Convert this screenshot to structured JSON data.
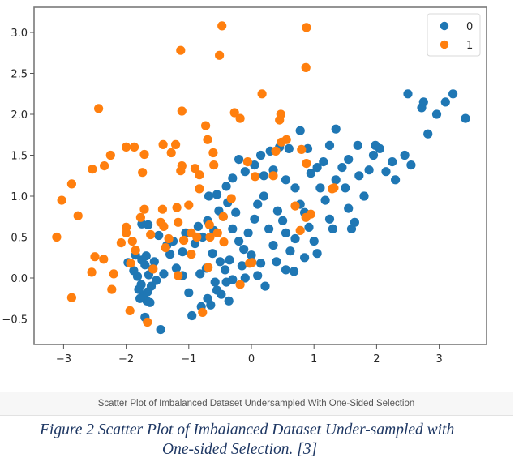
{
  "colors": {
    "class0": "#1f77b4",
    "class1": "#ff7f0e",
    "spine": "#7a7a7a",
    "caption": "#1f3864"
  },
  "axes": {
    "x_ticks": [
      -3,
      -2,
      -1,
      0,
      1,
      2,
      3
    ],
    "x_tick_labels": [
      "−3",
      "−2",
      "−1",
      "0",
      "1",
      "2",
      "3"
    ],
    "y_ticks": [
      -0.5,
      0.0,
      0.5,
      1.0,
      1.5,
      2.0,
      2.5,
      3.0
    ],
    "y_tick_labels": [
      "−0.5",
      "0.0",
      "0.5",
      "1.0",
      "1.5",
      "2.0",
      "2.5",
      "3.0"
    ]
  },
  "legend": {
    "entries": [
      {
        "label": "0",
        "color": "#1f77b4"
      },
      {
        "label": "1",
        "color": "#ff7f0e"
      }
    ]
  },
  "plot_title_bar": "Scatter Plot of Imbalanced Dataset Undersampled With One-Sided Selection",
  "figure_caption": {
    "line1": "Figure 2 Scatter Plot of Imbalanced Dataset Under-sampled with",
    "line2": "One-sided Selection. [3]"
  },
  "chart_data": {
    "type": "scatter",
    "title": "Scatter Plot of Imbalanced Dataset Undersampled With One-Sided Selection",
    "xlabel": "",
    "ylabel": "",
    "xlim": [
      -3.47,
      3.74
    ],
    "ylim": [
      -0.82,
      3.31
    ],
    "grid": false,
    "legend_position": "upper right",
    "series": [
      {
        "name": "0",
        "color": "#1f77b4",
        "points": [
          [
            -1.97,
            0.19
          ],
          [
            -1.88,
            0.09
          ],
          [
            -1.82,
            0.02
          ],
          [
            -1.76,
            -0.08
          ],
          [
            -1.7,
            0.16
          ],
          [
            -1.64,
            0.04
          ],
          [
            -1.6,
            -0.1
          ],
          [
            -1.75,
            0.22
          ],
          [
            -1.68,
            0.27
          ],
          [
            -1.85,
            0.28
          ],
          [
            -1.72,
            -0.21
          ],
          [
            -1.67,
            -0.28
          ],
          [
            -1.62,
            -0.3
          ],
          [
            -1.78,
            -0.25
          ],
          [
            -1.7,
            -0.48
          ],
          [
            -1.45,
            -0.63
          ],
          [
            -1.58,
            0.11
          ],
          [
            -1.52,
            -0.03
          ],
          [
            -1.66,
            -0.17
          ],
          [
            -1.8,
            -0.14
          ],
          [
            -1.75,
            0.66
          ],
          [
            -1.65,
            0.65
          ],
          [
            -1.3,
            0.29
          ],
          [
            -1.2,
            0.12
          ],
          [
            -1.1,
            0.03
          ],
          [
            -1.0,
            -0.18
          ],
          [
            -0.95,
            -0.46
          ],
          [
            -0.8,
            -0.35
          ],
          [
            -0.7,
            -0.25
          ],
          [
            -0.65,
            -0.33
          ],
          [
            -0.55,
            -0.15
          ],
          [
            -0.4,
            -0.05
          ],
          [
            -0.3,
            -0.02
          ],
          [
            -0.1,
            0.0
          ],
          [
            0.1,
            0.03
          ],
          [
            0.22,
            -0.1
          ],
          [
            -1.35,
            0.4
          ],
          [
            -1.25,
            0.45
          ],
          [
            -1.1,
            0.32
          ],
          [
            -1.05,
            0.55
          ],
          [
            -0.9,
            0.42
          ],
          [
            -0.85,
            0.63
          ],
          [
            -0.78,
            0.5
          ],
          [
            -0.7,
            0.7
          ],
          [
            -0.6,
            0.58
          ],
          [
            -0.52,
            0.82
          ],
          [
            -0.45,
            0.75
          ],
          [
            -0.38,
            0.92
          ],
          [
            -0.3,
            0.6
          ],
          [
            -0.25,
            0.8
          ],
          [
            -0.2,
            0.45
          ],
          [
            -0.12,
            0.35
          ],
          [
            -0.05,
            0.55
          ],
          [
            0.05,
            0.72
          ],
          [
            0.1,
            0.9
          ],
          [
            0.2,
            1.0
          ],
          [
            0.28,
            0.6
          ],
          [
            0.35,
            0.4
          ],
          [
            0.42,
            0.82
          ],
          [
            0.5,
            0.7
          ],
          [
            0.55,
            0.55
          ],
          [
            0.62,
            0.33
          ],
          [
            0.7,
            0.48
          ],
          [
            0.78,
            0.9
          ],
          [
            0.85,
            0.8
          ],
          [
            0.92,
            0.62
          ],
          [
            1.0,
            0.45
          ],
          [
            1.1,
            1.1
          ],
          [
            1.18,
            0.95
          ],
          [
            1.25,
            0.72
          ],
          [
            1.3,
            0.6
          ],
          [
            1.35,
            1.2
          ],
          [
            1.45,
            1.35
          ],
          [
            1.5,
            1.1
          ],
          [
            1.55,
            0.85
          ],
          [
            1.6,
            0.6
          ],
          [
            1.65,
            0.68
          ],
          [
            1.72,
            1.25
          ],
          [
            1.8,
            1.0
          ],
          [
            1.88,
            1.32
          ],
          [
            1.95,
            1.5
          ],
          [
            2.05,
            1.58
          ],
          [
            2.15,
            1.3
          ],
          [
            2.25,
            1.42
          ],
          [
            2.3,
            1.2
          ],
          [
            2.45,
            1.5
          ],
          [
            2.5,
            2.25
          ],
          [
            2.72,
            2.08
          ],
          [
            2.75,
            2.15
          ],
          [
            2.82,
            1.76
          ],
          [
            2.96,
            2.0
          ],
          [
            3.1,
            2.15
          ],
          [
            3.22,
            2.25
          ],
          [
            3.42,
            1.95
          ],
          [
            2.55,
            1.38
          ],
          [
            1.98,
            1.62
          ],
          [
            1.7,
            1.62
          ],
          [
            1.55,
            1.45
          ],
          [
            1.25,
            1.62
          ],
          [
            1.35,
            1.82
          ],
          [
            0.9,
            1.58
          ],
          [
            0.78,
            1.8
          ],
          [
            0.6,
            1.58
          ],
          [
            0.45,
            1.6
          ],
          [
            0.3,
            1.55
          ],
          [
            0.15,
            1.5
          ],
          [
            0.05,
            1.38
          ],
          [
            -0.1,
            1.3
          ],
          [
            -0.2,
            1.45
          ],
          [
            -0.3,
            1.22
          ],
          [
            -0.4,
            1.12
          ],
          [
            -0.55,
            1.02
          ],
          [
            -0.68,
            1.0
          ],
          [
            0.2,
            1.25
          ],
          [
            0.35,
            1.32
          ],
          [
            0.55,
            1.2
          ],
          [
            0.7,
            1.1
          ],
          [
            0.95,
            1.28
          ],
          [
            1.05,
            1.35
          ],
          [
            1.15,
            1.42
          ],
          [
            -0.62,
            0.3
          ],
          [
            -0.5,
            0.2
          ],
          [
            -0.42,
            0.1
          ],
          [
            -0.35,
            0.22
          ],
          [
            -0.15,
            0.15
          ],
          [
            0.0,
            0.28
          ],
          [
            0.15,
            0.18
          ],
          [
            0.4,
            0.2
          ],
          [
            0.55,
            0.1
          ],
          [
            0.68,
            0.08
          ],
          [
            0.85,
            0.25
          ],
          [
            1.05,
            0.3
          ],
          [
            -0.72,
            0.12
          ],
          [
            -0.82,
            0.05
          ],
          [
            -0.58,
            -0.05
          ],
          [
            -0.48,
            -0.2
          ],
          [
            -0.36,
            -0.28
          ],
          [
            -1.4,
            0.05
          ],
          [
            -1.55,
            0.2
          ],
          [
            -1.48,
            0.52
          ]
        ]
      },
      {
        "name": "1",
        "color": "#ff7f0e",
        "points": [
          [
            -0.47,
            3.08
          ],
          [
            -1.13,
            2.78
          ],
          [
            -0.51,
            2.72
          ],
          [
            0.88,
            3.06
          ],
          [
            0.87,
            2.57
          ],
          [
            0.17,
            2.25
          ],
          [
            -2.44,
            2.07
          ],
          [
            -1.11,
            2.04
          ],
          [
            -0.27,
            2.02
          ],
          [
            -0.18,
            1.95
          ],
          [
            0.47,
            2.0
          ],
          [
            0.45,
            1.93
          ],
          [
            -0.73,
            1.86
          ],
          [
            -0.7,
            1.69
          ],
          [
            -1.87,
            1.6
          ],
          [
            -1.41,
            1.63
          ],
          [
            -1.21,
            1.63
          ],
          [
            -2.0,
            1.6
          ],
          [
            -2.25,
            1.5
          ],
          [
            -1.71,
            1.51
          ],
          [
            -1.28,
            1.53
          ],
          [
            -0.61,
            1.53
          ],
          [
            -2.54,
            1.33
          ],
          [
            -2.35,
            1.37
          ],
          [
            -1.74,
            1.29
          ],
          [
            -1.11,
            1.37
          ],
          [
            -0.6,
            1.38
          ],
          [
            -1.13,
            1.31
          ],
          [
            -0.83,
            1.26
          ],
          [
            -0.9,
            1.34
          ],
          [
            0.88,
            1.4
          ],
          [
            0.8,
            1.57
          ],
          [
            -3.03,
            0.95
          ],
          [
            -2.87,
            1.15
          ],
          [
            -2.77,
            0.76
          ],
          [
            -3.11,
            0.5
          ],
          [
            -2.0,
            0.62
          ],
          [
            -2.0,
            0.55
          ],
          [
            -1.9,
            0.45
          ],
          [
            -2.08,
            0.43
          ],
          [
            -1.61,
            0.53
          ],
          [
            -1.19,
            0.86
          ],
          [
            -1.42,
            0.84
          ],
          [
            -1.4,
            0.63
          ],
          [
            -1.45,
            0.68
          ],
          [
            -1.17,
            0.68
          ],
          [
            -1.32,
            0.48
          ],
          [
            -1.08,
            0.46
          ],
          [
            -0.96,
            0.55
          ],
          [
            -0.66,
            0.5
          ],
          [
            -0.45,
            0.75
          ],
          [
            -0.67,
            0.65
          ],
          [
            -0.54,
            0.55
          ],
          [
            -0.44,
            0.44
          ],
          [
            -0.87,
            0.5
          ],
          [
            -1.37,
            0.37
          ],
          [
            -1.85,
            0.34
          ],
          [
            -1.93,
            0.18
          ],
          [
            -1.57,
            0.11
          ],
          [
            -1.17,
            0.03
          ],
          [
            -0.96,
            0.29
          ],
          [
            -0.69,
            0.13
          ],
          [
            -0.78,
            -0.42
          ],
          [
            -0.18,
            -0.08
          ],
          [
            -0.03,
            0.18
          ],
          [
            0.01,
            0.19
          ],
          [
            0.35,
            1.25
          ],
          [
            0.39,
            1.55
          ],
          [
            0.7,
            0.88
          ],
          [
            0.78,
            0.58
          ],
          [
            0.87,
            0.74
          ],
          [
            0.95,
            0.78
          ],
          [
            1.29,
            1.09
          ],
          [
            1.32,
            1.1
          ],
          [
            -2.36,
            0.23
          ],
          [
            -2.2,
            0.05
          ],
          [
            -2.55,
            0.07
          ],
          [
            -2.23,
            -0.14
          ],
          [
            -2.87,
            -0.24
          ],
          [
            -1.94,
            -0.4
          ],
          [
            -1.66,
            -0.54
          ],
          [
            -2.5,
            0.26
          ],
          [
            -1.71,
            0.84
          ],
          [
            -1.77,
            0.74
          ],
          [
            -0.32,
            0.97
          ],
          [
            -1.0,
            0.89
          ],
          [
            0.06,
            1.24
          ],
          [
            -0.06,
            1.42
          ],
          [
            -0.83,
            1.09
          ],
          [
            0.56,
            1.69
          ],
          [
            0.48,
            1.66
          ]
        ]
      }
    ]
  }
}
